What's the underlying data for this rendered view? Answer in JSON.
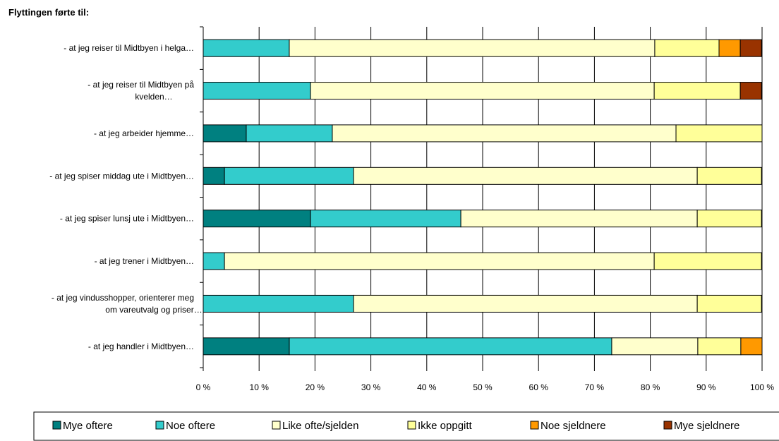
{
  "chart_data": {
    "type": "bar",
    "orientation": "horizontal",
    "stacked": "percent",
    "title": "Flyttingen førte til:",
    "categories": [
      [
        "-  at jeg reiser til Midtbyen i helga…"
      ],
      [
        "- at jeg reiser til Midtbyen på",
        "kvelden…"
      ],
      [
        "- at jeg arbeider hjemme…"
      ],
      [
        "- at jeg spiser middag ute i Midtbyen…"
      ],
      [
        "- at jeg spiser lunsj ute i Midtbyen…"
      ],
      [
        "- at jeg trener i Midtbyen…"
      ],
      [
        "- at jeg vindusshopper, orienterer meg",
        "om vareutvalg og priser…"
      ],
      [
        "- at jeg handler i Midtbyen…"
      ]
    ],
    "series": [
      {
        "name": "Mye oftere",
        "color": "#008080",
        "values": [
          0,
          0,
          7.7,
          3.8,
          19.2,
          0,
          0,
          15.4
        ]
      },
      {
        "name": "Noe oftere",
        "color": "#33CCCC",
        "values": [
          15.4,
          19.2,
          15.4,
          23.1,
          26.9,
          3.8,
          26.9,
          57.7
        ]
      },
      {
        "name": "Like ofte/sjelden",
        "color": "#FFFFCC",
        "values": [
          65.4,
          61.5,
          61.5,
          61.5,
          42.3,
          76.9,
          61.5,
          15.4
        ]
      },
      {
        "name": "Ikke oppgitt",
        "color": "#FFFF99",
        "values": [
          11.5,
          15.4,
          15.4,
          11.5,
          11.5,
          19.2,
          11.5,
          7.7
        ]
      },
      {
        "name": "Noe sjeldnere",
        "color": "#FF9900",
        "values": [
          3.8,
          0,
          0,
          0,
          0,
          0,
          0,
          3.8
        ]
      },
      {
        "name": "Mye sjeldnere",
        "color": "#993300",
        "values": [
          3.8,
          3.8,
          0,
          0,
          0,
          0,
          0,
          0
        ]
      }
    ],
    "xlim": [
      0,
      100
    ],
    "x_ticks": [
      "0 %",
      "10 %",
      "20 %",
      "30 %",
      "40 %",
      "50 %",
      "60 %",
      "70 %",
      "80 %",
      "90 %",
      "100 %"
    ],
    "grid": "vertical",
    "legend_position": "bottom"
  }
}
